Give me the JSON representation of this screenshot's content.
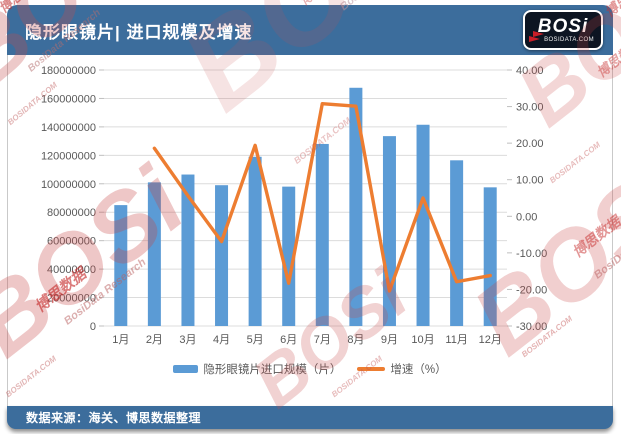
{
  "header": {
    "title": "隐形眼镜片| 进口规模及增速",
    "logo": {
      "text": "BOSi",
      "site": "BOSIDATA.COM"
    }
  },
  "footer": {
    "source": "数据来源：海关、博思数据整理"
  },
  "watermark": {
    "brand": "BOSi",
    "cn": "博思数据",
    "en": "BosiData Research",
    "site": "BOSIDATA.COM",
    "color": "#C23B3B"
  },
  "colors": {
    "header_bar": "#3C6D9C",
    "bar_series": "#5B9BD5",
    "line_series": "#ED7D31",
    "gridline": "#DCDCDC",
    "axis_text": "#595959",
    "tick": "#BFBFBF"
  },
  "chart_data": {
    "type": "bar+line",
    "title": "隐形眼镜片| 进口规模及增速",
    "categories": [
      "1月",
      "2月",
      "3月",
      "4月",
      "5月",
      "6月",
      "7月",
      "8月",
      "9月",
      "10月",
      "11月",
      "12月"
    ],
    "series": [
      {
        "name": "隐形眼镜片进口规模（片）",
        "type": "bar",
        "axis": "left",
        "color": "#5B9BD5",
        "values": [
          85000000,
          101000000,
          106500000,
          99000000,
          119000000,
          98000000,
          128000000,
          167500000,
          133500000,
          141500000,
          116500000,
          97500000
        ]
      },
      {
        "name": "增速（%）",
        "type": "line",
        "axis": "right",
        "color": "#ED7D31",
        "values": [
          null,
          18.6,
          5.6,
          -6.9,
          19.4,
          -18.3,
          30.8,
          30.1,
          -20.4,
          5.0,
          -17.9,
          -16.2
        ]
      }
    ],
    "left_axis": {
      "min": 0,
      "max": 180000000,
      "step": 20000000,
      "tick_labels": [
        "0",
        "20000000",
        "40000000",
        "60000000",
        "80000000",
        "100000000",
        "120000000",
        "140000000",
        "160000000",
        "180000000"
      ]
    },
    "right_axis": {
      "min": -30,
      "max": 40,
      "step": 10,
      "tick_labels": [
        "-30.00",
        "-20.00",
        "-10.00",
        "0.00",
        "10.00",
        "20.00",
        "30.00",
        "40.00"
      ]
    },
    "grid": true,
    "legend_position": "bottom"
  }
}
